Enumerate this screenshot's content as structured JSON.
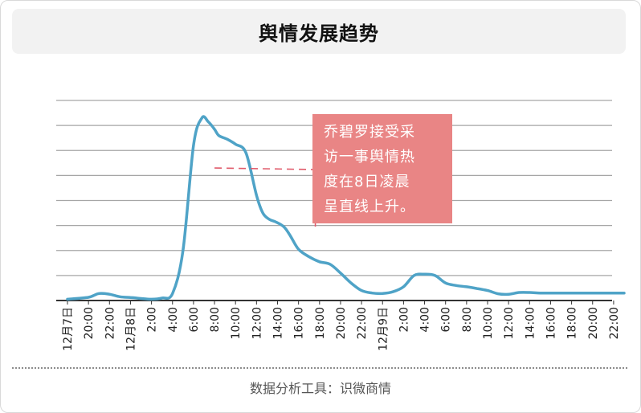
{
  "title": "舆情发展趋势",
  "source": "数据分析工具：识微商情",
  "colors": {
    "line": "#4fa3c7",
    "grid": "#a6a6a6",
    "axis": "#333333",
    "annotation_bg": "#e98585",
    "marker": "#e05a6a"
  },
  "chart_data": {
    "type": "line",
    "title": "舆情发展趋势",
    "xlabel": "",
    "ylabel": "",
    "grid": true,
    "legend": "none",
    "y_tick_labels": false,
    "ylim": [
      0,
      8
    ],
    "x_tick_labels": [
      "12月7日",
      "20:00",
      "22:00",
      "12月8日",
      "2:00",
      "4:00",
      "6:00",
      "8:00",
      "10:00",
      "12:00",
      "14:00",
      "16:00",
      "18:00",
      "20:00",
      "22:00",
      "12月9日",
      "2:00",
      "4:00",
      "6:00",
      "8:00",
      "10:00",
      "12:00",
      "14:00",
      "16:00",
      "18:00",
      "20:00",
      "22:00"
    ],
    "series": [
      {
        "x": [
          0,
          1,
          1.5,
          2,
          2.5,
          3,
          3.5,
          4,
          4.5,
          5,
          5.5,
          6,
          6.4,
          6.7,
          7,
          7.2,
          7.6,
          8,
          8.5,
          9,
          9.3,
          9.6,
          9.9,
          10.3,
          10.6,
          11,
          11.5,
          12,
          12.5,
          13,
          13.5,
          14,
          14.5,
          15,
          15.5,
          16,
          16.5,
          17,
          17.5,
          18,
          18.5,
          19,
          19.5,
          20,
          20.5,
          21,
          21.5,
          22,
          22.5,
          23,
          23.5,
          24,
          24.5,
          25,
          25.5,
          26,
          26.5
        ],
        "values": [
          0.05,
          0.13,
          0.28,
          0.25,
          0.15,
          0.12,
          0.08,
          0.05,
          0.1,
          0.28,
          2,
          6.2,
          7.3,
          7.15,
          6.85,
          6.6,
          6.45,
          6.25,
          5.9,
          4.2,
          3.5,
          3.25,
          3.15,
          2.95,
          2.6,
          2.05,
          1.75,
          1.55,
          1.45,
          1.1,
          0.7,
          0.4,
          0.3,
          0.28,
          0.35,
          0.55,
          1.0,
          1.05,
          1.0,
          0.7,
          0.6,
          0.55,
          0.48,
          0.4,
          0.27,
          0.25,
          0.32,
          0.32,
          0.3,
          0.3,
          0.3,
          0.3,
          0.3,
          0.3,
          0.3,
          0.3,
          0.3
        ]
      }
    ],
    "annotation": {
      "text": [
        "乔碧罗接受采",
        "访一事舆情热",
        "度在8日凌晨",
        "呈直线上升。"
      ],
      "x": 11.8,
      "y_level": 5.3
    }
  }
}
